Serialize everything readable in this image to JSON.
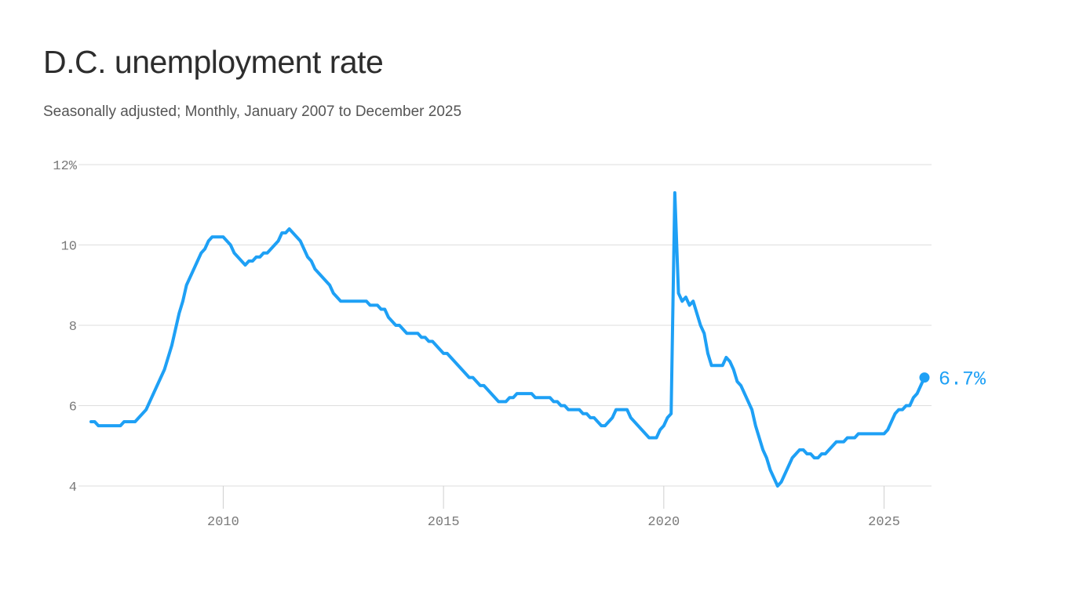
{
  "title": "D.C. unemployment rate",
  "subtitle": "Seasonally adjusted; Monthly, January 2007 to December 2025",
  "chart_data": {
    "type": "line",
    "title": "D.C. unemployment rate",
    "subtitle": "Seasonally adjusted; Monthly, January 2007 to December 2025",
    "xlabel": "",
    "ylabel": "",
    "x_range": [
      "2007-01",
      "2025-12"
    ],
    "ylim": [
      4,
      12
    ],
    "y_ticks": [
      4,
      6,
      8,
      10,
      12
    ],
    "y_tick_labels": [
      "4",
      "6",
      "8",
      "10",
      "12%"
    ],
    "x_ticks": [
      2010,
      2015,
      2020,
      2025
    ],
    "x_tick_labels": [
      "2010",
      "2015",
      "2020",
      "2025"
    ],
    "grid": "horizontal",
    "color": "#1ea0f5",
    "end_label": "6.7%",
    "series": [
      {
        "points": [
          [
            "2007-01",
            5.6
          ],
          [
            "2007-02",
            5.6
          ],
          [
            "2007-03",
            5.5
          ],
          [
            "2007-04",
            5.5
          ],
          [
            "2007-05",
            5.5
          ],
          [
            "2007-06",
            5.5
          ],
          [
            "2007-07",
            5.5
          ],
          [
            "2007-08",
            5.5
          ],
          [
            "2007-09",
            5.5
          ],
          [
            "2007-10",
            5.6
          ],
          [
            "2007-11",
            5.6
          ],
          [
            "2007-12",
            5.6
          ],
          [
            "2008-01",
            5.6
          ],
          [
            "2008-02",
            5.7
          ],
          [
            "2008-03",
            5.8
          ],
          [
            "2008-04",
            5.9
          ],
          [
            "2008-05",
            6.1
          ],
          [
            "2008-06",
            6.3
          ],
          [
            "2008-07",
            6.5
          ],
          [
            "2008-08",
            6.7
          ],
          [
            "2008-09",
            6.9
          ],
          [
            "2008-10",
            7.2
          ],
          [
            "2008-11",
            7.5
          ],
          [
            "2008-12",
            7.9
          ],
          [
            "2009-01",
            8.3
          ],
          [
            "2009-02",
            8.6
          ],
          [
            "2009-03",
            9.0
          ],
          [
            "2009-04",
            9.2
          ],
          [
            "2009-05",
            9.4
          ],
          [
            "2009-06",
            9.6
          ],
          [
            "2009-07",
            9.8
          ],
          [
            "2009-08",
            9.9
          ],
          [
            "2009-09",
            10.1
          ],
          [
            "2009-10",
            10.2
          ],
          [
            "2009-11",
            10.2
          ],
          [
            "2009-12",
            10.2
          ],
          [
            "2010-01",
            10.2
          ],
          [
            "2010-02",
            10.1
          ],
          [
            "2010-03",
            10.0
          ],
          [
            "2010-04",
            9.8
          ],
          [
            "2010-05",
            9.7
          ],
          [
            "2010-06",
            9.6
          ],
          [
            "2010-07",
            9.5
          ],
          [
            "2010-08",
            9.6
          ],
          [
            "2010-09",
            9.6
          ],
          [
            "2010-10",
            9.7
          ],
          [
            "2010-11",
            9.7
          ],
          [
            "2010-12",
            9.8
          ],
          [
            "2011-01",
            9.8
          ],
          [
            "2011-02",
            9.9
          ],
          [
            "2011-03",
            10.0
          ],
          [
            "2011-04",
            10.1
          ],
          [
            "2011-05",
            10.3
          ],
          [
            "2011-06",
            10.3
          ],
          [
            "2011-07",
            10.4
          ],
          [
            "2011-08",
            10.3
          ],
          [
            "2011-09",
            10.2
          ],
          [
            "2011-10",
            10.1
          ],
          [
            "2011-11",
            9.9
          ],
          [
            "2011-12",
            9.7
          ],
          [
            "2012-01",
            9.6
          ],
          [
            "2012-02",
            9.4
          ],
          [
            "2012-03",
            9.3
          ],
          [
            "2012-04",
            9.2
          ],
          [
            "2012-05",
            9.1
          ],
          [
            "2012-06",
            9.0
          ],
          [
            "2012-07",
            8.8
          ],
          [
            "2012-08",
            8.7
          ],
          [
            "2012-09",
            8.6
          ],
          [
            "2012-10",
            8.6
          ],
          [
            "2012-11",
            8.6
          ],
          [
            "2012-12",
            8.6
          ],
          [
            "2013-01",
            8.6
          ],
          [
            "2013-02",
            8.6
          ],
          [
            "2013-03",
            8.6
          ],
          [
            "2013-04",
            8.6
          ],
          [
            "2013-05",
            8.5
          ],
          [
            "2013-06",
            8.5
          ],
          [
            "2013-07",
            8.5
          ],
          [
            "2013-08",
            8.4
          ],
          [
            "2013-09",
            8.4
          ],
          [
            "2013-10",
            8.2
          ],
          [
            "2013-11",
            8.1
          ],
          [
            "2013-12",
            8.0
          ],
          [
            "2014-01",
            8.0
          ],
          [
            "2014-02",
            7.9
          ],
          [
            "2014-03",
            7.8
          ],
          [
            "2014-04",
            7.8
          ],
          [
            "2014-05",
            7.8
          ],
          [
            "2014-06",
            7.8
          ],
          [
            "2014-07",
            7.7
          ],
          [
            "2014-08",
            7.7
          ],
          [
            "2014-09",
            7.6
          ],
          [
            "2014-10",
            7.6
          ],
          [
            "2014-11",
            7.5
          ],
          [
            "2014-12",
            7.4
          ],
          [
            "2015-01",
            7.3
          ],
          [
            "2015-02",
            7.3
          ],
          [
            "2015-03",
            7.2
          ],
          [
            "2015-04",
            7.1
          ],
          [
            "2015-05",
            7.0
          ],
          [
            "2015-06",
            6.9
          ],
          [
            "2015-07",
            6.8
          ],
          [
            "2015-08",
            6.7
          ],
          [
            "2015-09",
            6.7
          ],
          [
            "2015-10",
            6.6
          ],
          [
            "2015-11",
            6.5
          ],
          [
            "2015-12",
            6.5
          ],
          [
            "2016-01",
            6.4
          ],
          [
            "2016-02",
            6.3
          ],
          [
            "2016-03",
            6.2
          ],
          [
            "2016-04",
            6.1
          ],
          [
            "2016-05",
            6.1
          ],
          [
            "2016-06",
            6.1
          ],
          [
            "2016-07",
            6.2
          ],
          [
            "2016-08",
            6.2
          ],
          [
            "2016-09",
            6.3
          ],
          [
            "2016-10",
            6.3
          ],
          [
            "2016-11",
            6.3
          ],
          [
            "2016-12",
            6.3
          ],
          [
            "2017-01",
            6.3
          ],
          [
            "2017-02",
            6.2
          ],
          [
            "2017-03",
            6.2
          ],
          [
            "2017-04",
            6.2
          ],
          [
            "2017-05",
            6.2
          ],
          [
            "2017-06",
            6.2
          ],
          [
            "2017-07",
            6.1
          ],
          [
            "2017-08",
            6.1
          ],
          [
            "2017-09",
            6.0
          ],
          [
            "2017-10",
            6.0
          ],
          [
            "2017-11",
            5.9
          ],
          [
            "2017-12",
            5.9
          ],
          [
            "2018-01",
            5.9
          ],
          [
            "2018-02",
            5.9
          ],
          [
            "2018-03",
            5.8
          ],
          [
            "2018-04",
            5.8
          ],
          [
            "2018-05",
            5.7
          ],
          [
            "2018-06",
            5.7
          ],
          [
            "2018-07",
            5.6
          ],
          [
            "2018-08",
            5.5
          ],
          [
            "2018-09",
            5.5
          ],
          [
            "2018-10",
            5.6
          ],
          [
            "2018-11",
            5.7
          ],
          [
            "2018-12",
            5.9
          ],
          [
            "2019-01",
            5.9
          ],
          [
            "2019-02",
            5.9
          ],
          [
            "2019-03",
            5.9
          ],
          [
            "2019-04",
            5.7
          ],
          [
            "2019-05",
            5.6
          ],
          [
            "2019-06",
            5.5
          ],
          [
            "2019-07",
            5.4
          ],
          [
            "2019-08",
            5.3
          ],
          [
            "2019-09",
            5.2
          ],
          [
            "2019-10",
            5.2
          ],
          [
            "2019-11",
            5.2
          ],
          [
            "2019-12",
            5.4
          ],
          [
            "2020-01",
            5.5
          ],
          [
            "2020-02",
            5.7
          ],
          [
            "2020-03",
            5.8
          ],
          [
            "2020-04",
            11.3
          ],
          [
            "2020-05",
            8.8
          ],
          [
            "2020-06",
            8.6
          ],
          [
            "2020-07",
            8.7
          ],
          [
            "2020-08",
            8.5
          ],
          [
            "2020-09",
            8.6
          ],
          [
            "2020-10",
            8.3
          ],
          [
            "2020-11",
            8.0
          ],
          [
            "2020-12",
            7.8
          ],
          [
            "2021-01",
            7.3
          ],
          [
            "2021-02",
            7.0
          ],
          [
            "2021-03",
            7.0
          ],
          [
            "2021-04",
            7.0
          ],
          [
            "2021-05",
            7.0
          ],
          [
            "2021-06",
            7.2
          ],
          [
            "2021-07",
            7.1
          ],
          [
            "2021-08",
            6.9
          ],
          [
            "2021-09",
            6.6
          ],
          [
            "2021-10",
            6.5
          ],
          [
            "2021-11",
            6.3
          ],
          [
            "2021-12",
            6.1
          ],
          [
            "2022-01",
            5.9
          ],
          [
            "2022-02",
            5.5
          ],
          [
            "2022-03",
            5.2
          ],
          [
            "2022-04",
            4.9
          ],
          [
            "2022-05",
            4.7
          ],
          [
            "2022-06",
            4.4
          ],
          [
            "2022-07",
            4.2
          ],
          [
            "2022-08",
            4.0
          ],
          [
            "2022-09",
            4.1
          ],
          [
            "2022-10",
            4.3
          ],
          [
            "2022-11",
            4.5
          ],
          [
            "2022-12",
            4.7
          ],
          [
            "2023-01",
            4.8
          ],
          [
            "2023-02",
            4.9
          ],
          [
            "2023-03",
            4.9
          ],
          [
            "2023-04",
            4.8
          ],
          [
            "2023-05",
            4.8
          ],
          [
            "2023-06",
            4.7
          ],
          [
            "2023-07",
            4.7
          ],
          [
            "2023-08",
            4.8
          ],
          [
            "2023-09",
            4.8
          ],
          [
            "2023-10",
            4.9
          ],
          [
            "2023-11",
            5.0
          ],
          [
            "2023-12",
            5.1
          ],
          [
            "2024-01",
            5.1
          ],
          [
            "2024-02",
            5.1
          ],
          [
            "2024-03",
            5.2
          ],
          [
            "2024-04",
            5.2
          ],
          [
            "2024-05",
            5.2
          ],
          [
            "2024-06",
            5.3
          ],
          [
            "2024-07",
            5.3
          ],
          [
            "2024-08",
            5.3
          ],
          [
            "2024-09",
            5.3
          ],
          [
            "2024-10",
            5.3
          ],
          [
            "2024-11",
            5.3
          ],
          [
            "2024-12",
            5.3
          ],
          [
            "2025-01",
            5.3
          ],
          [
            "2025-02",
            5.4
          ],
          [
            "2025-03",
            5.6
          ],
          [
            "2025-04",
            5.8
          ],
          [
            "2025-05",
            5.9
          ],
          [
            "2025-06",
            5.9
          ],
          [
            "2025-07",
            6.0
          ],
          [
            "2025-08",
            6.0
          ],
          [
            "2025-09",
            6.2
          ],
          [
            "2025-10",
            6.3
          ],
          [
            "2025-11",
            6.5
          ],
          [
            "2025-12",
            6.7
          ]
        ]
      }
    ]
  }
}
